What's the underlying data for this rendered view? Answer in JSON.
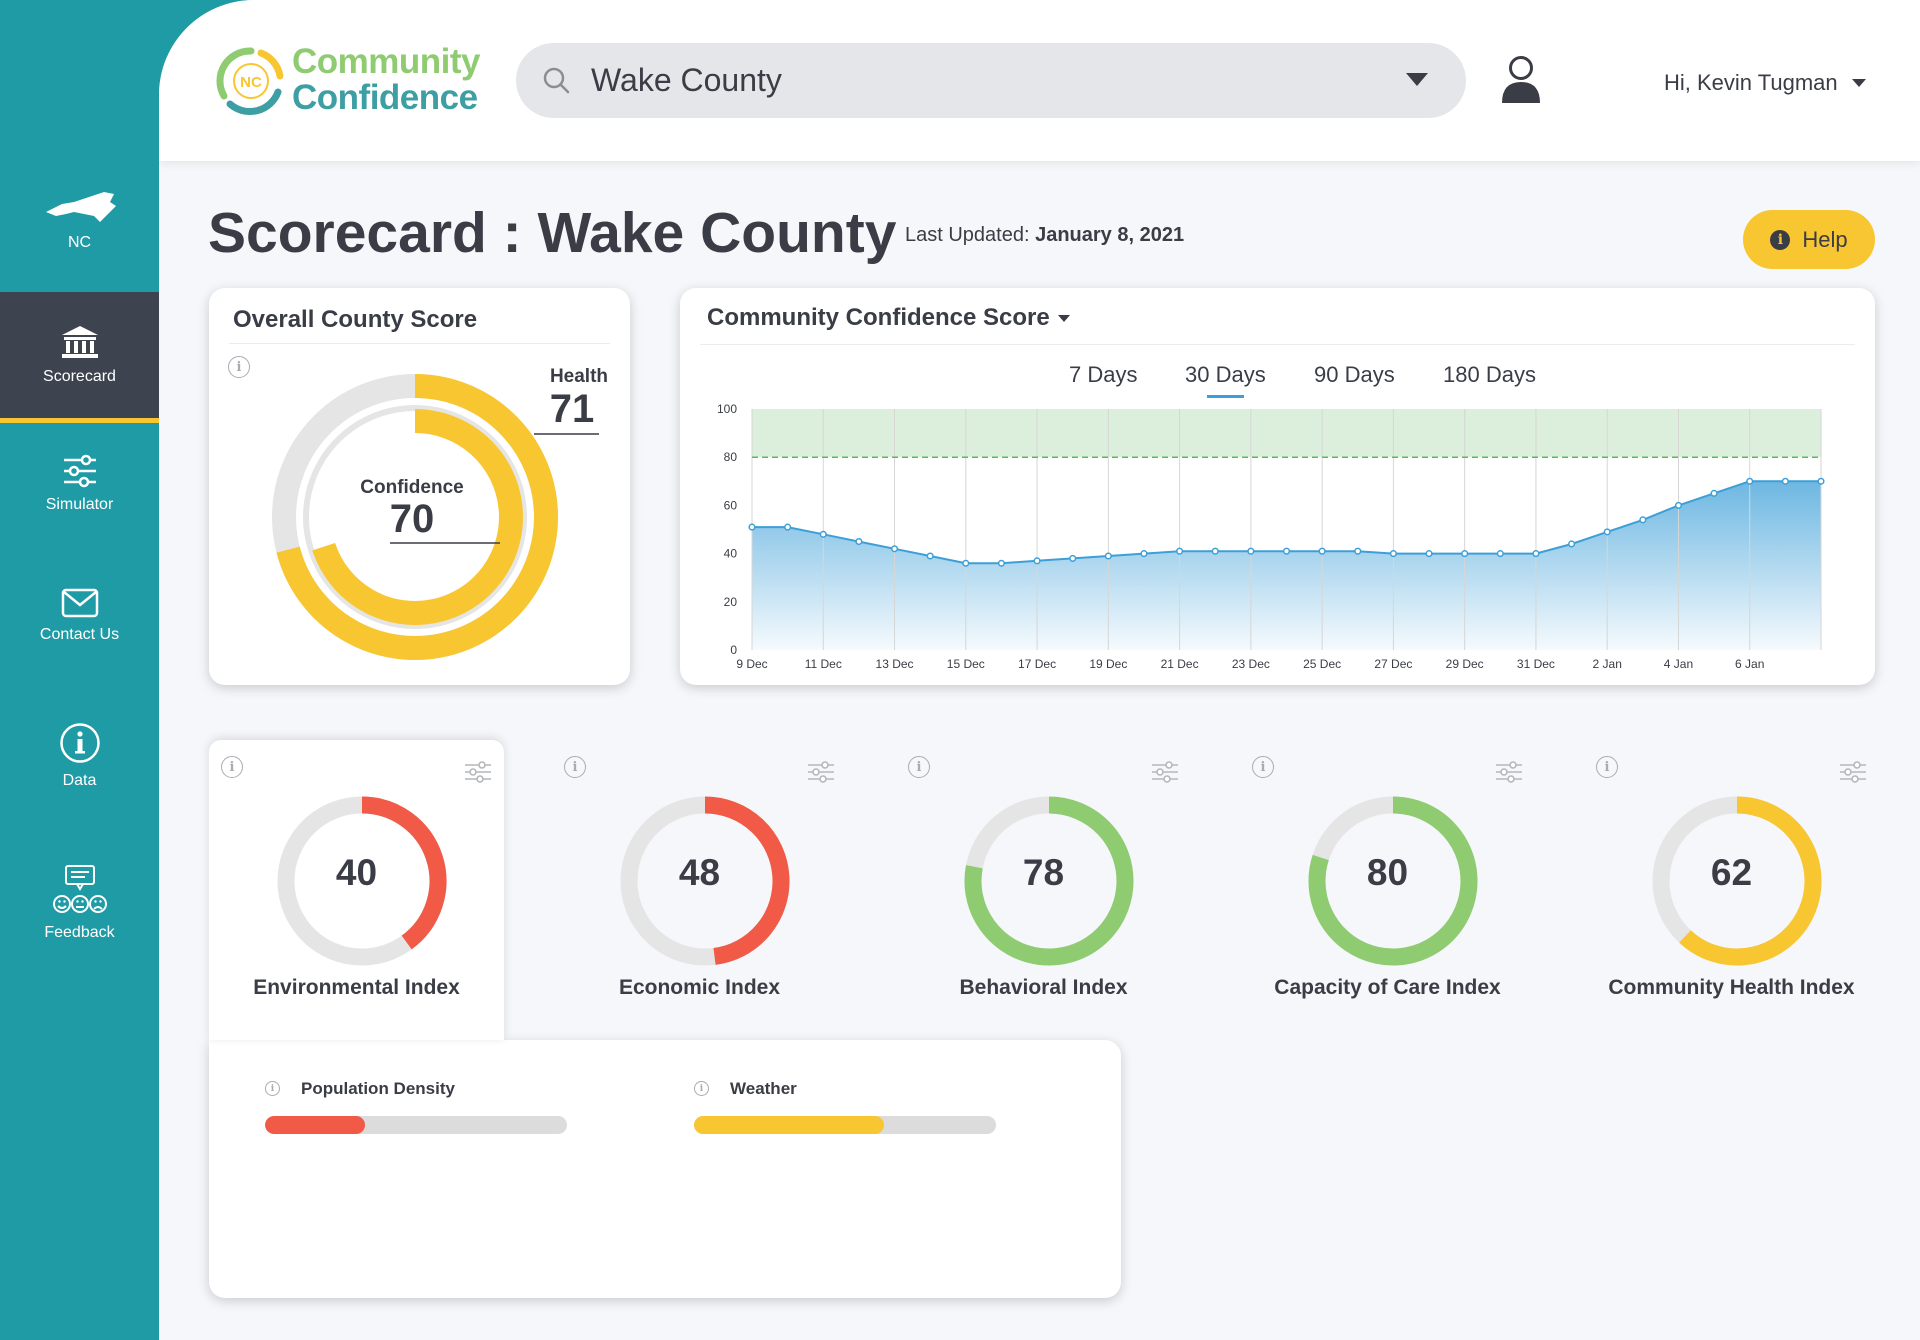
{
  "sidebar": {
    "items": [
      {
        "label": "NC",
        "icon": "nc-state-icon"
      },
      {
        "label": "Scorecard",
        "icon": "bank-icon"
      },
      {
        "label": "Simulator",
        "icon": "sliders-icon"
      },
      {
        "label": "Contact Us",
        "icon": "envelope-icon"
      },
      {
        "label": "Data",
        "icon": "info-icon"
      },
      {
        "label": "Feedback",
        "icon": "feedback-icon"
      }
    ],
    "active": "Scorecard"
  },
  "header": {
    "logo": {
      "badge": "NC",
      "line1": "Community",
      "line2": "Confidence"
    },
    "search": {
      "value": "Wake County"
    },
    "user_greeting": "Hi, Kevin Tugman"
  },
  "page": {
    "title": "Scorecard : Wake County",
    "last_updated_label": "Last Updated:",
    "last_updated_value": "January 8, 2021",
    "help_label": "Help",
    "help_icon_glyph": "i"
  },
  "overall": {
    "title": "Overall County Score",
    "health_label": "Health",
    "health_value": "71",
    "confidence_label": "Confidence",
    "confidence_value": "70",
    "colors": {
      "ring": "#f8c630",
      "track": "#e5e5e5"
    }
  },
  "info_glyph": "i",
  "cc_chart": {
    "title": "Community Confidence Score",
    "tabs": [
      "7 Days",
      "30 Days",
      "90 Days",
      "180 Days"
    ],
    "active_tab": "30 Days"
  },
  "chart_data": {
    "type": "area",
    "title": "",
    "xlabel": "",
    "ylabel": "",
    "ylim": [
      0,
      100
    ],
    "yticks": [
      0,
      20,
      40,
      60,
      80,
      100
    ],
    "x_tick_labels": [
      "9 Dec",
      "11 Dec",
      "13 Dec",
      "15 Dec",
      "17 Dec",
      "19 Dec",
      "21 Dec",
      "23 Dec",
      "25 Dec",
      "27 Dec",
      "29 Dec",
      "31 Dec",
      "2 Jan",
      "4 Jan",
      "6 Jan"
    ],
    "threshold": 80,
    "target_band": [
      80,
      100
    ],
    "grid": "vertical",
    "series": [
      {
        "values": [
          51,
          51,
          48,
          45,
          42,
          39,
          36,
          36,
          37,
          38,
          39,
          40,
          41,
          41,
          41,
          41,
          41,
          41,
          40,
          40,
          40,
          40,
          40,
          44,
          49,
          54,
          60,
          65,
          70,
          70,
          70
        ]
      }
    ],
    "colors": {
      "line": "#3c9fd8",
      "band": "#dcefdc",
      "threshold": "#5cb85c"
    }
  },
  "indices": [
    {
      "label": "Environmental Index",
      "value": 40,
      "color": "#f05a47"
    },
    {
      "label": "Economic Index",
      "value": 48,
      "color": "#f05a47"
    },
    {
      "label": "Behavioral Index",
      "value": 78,
      "color": "#8fcb71"
    },
    {
      "label": "Capacity of Care Index",
      "value": 80,
      "color": "#8fcb71"
    },
    {
      "label": "Community Health Index",
      "value": 62,
      "color": "#f8c630"
    }
  ],
  "detail": {
    "items": [
      {
        "label": "Population Density",
        "fill_fraction": 0.33,
        "color": "#f05a47"
      },
      {
        "label": "Weather",
        "fill_fraction": 0.63,
        "color": "#f8c630"
      }
    ]
  }
}
